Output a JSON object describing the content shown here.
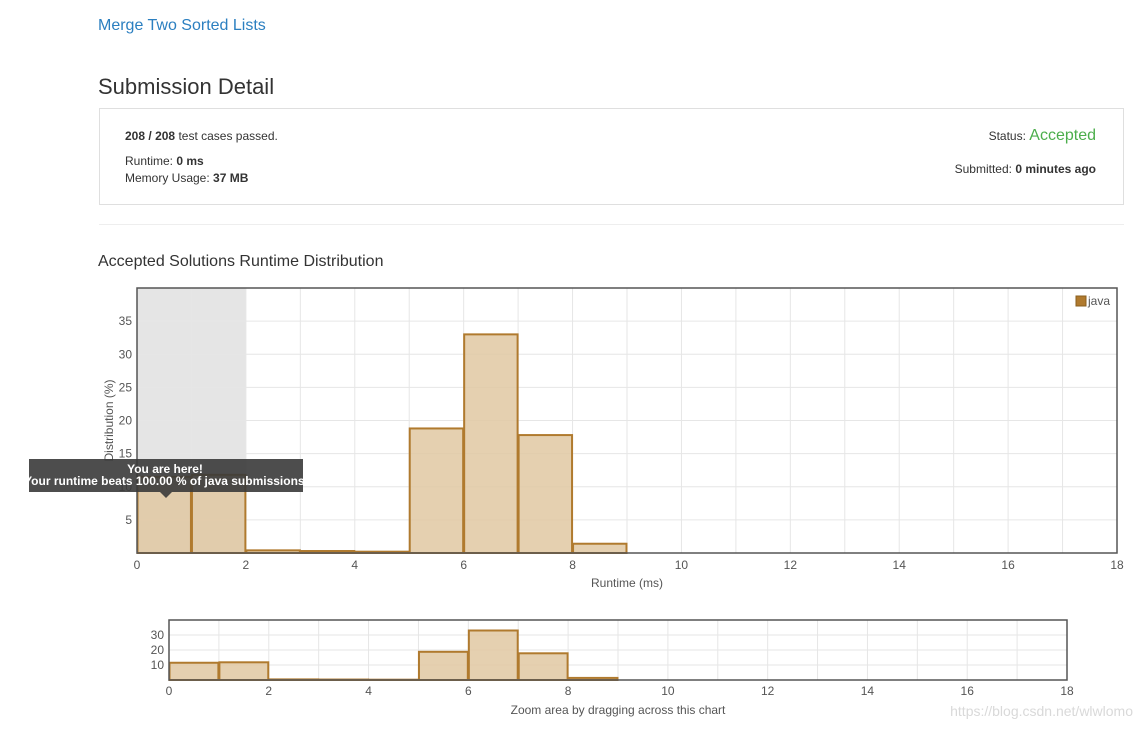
{
  "problem": {
    "title": "Merge Two Sorted Lists"
  },
  "page_title": "Submission Detail",
  "submission": {
    "passed": "208",
    "separator": "/",
    "total": "208",
    "passed_suffix": "test cases passed.",
    "runtime_label": "Runtime:",
    "runtime_value": "0 ms",
    "memory_label": "Memory Usage:",
    "memory_value": "37 MB",
    "status_label": "Status:",
    "status_value": "Accepted",
    "submitted_label": "Submitted:",
    "submitted_value": "0 minutes ago"
  },
  "section_title": "Accepted Solutions Runtime Distribution",
  "tooltip": {
    "line1": "You are here!",
    "line2": "Your runtime beats 100.00 % of java submissions."
  },
  "colors": {
    "bar_fill": "#e0c8a2",
    "bar_stroke": "#b07a2e",
    "highlight": "#e5e5e5",
    "status": "#4cae4c",
    "link": "#2b7fc0"
  },
  "chart_data": [
    {
      "type": "bar",
      "bins_start": [
        0,
        1,
        2,
        3,
        4,
        5,
        6,
        7,
        8,
        9,
        10,
        11,
        12,
        13,
        14,
        15,
        16,
        17
      ],
      "bin_width": 1,
      "series": [
        {
          "name": "java",
          "values": [
            11.5,
            11.8,
            0.4,
            0.3,
            0.2,
            18.8,
            33.0,
            17.8,
            1.4,
            0,
            0,
            0,
            0,
            0,
            0,
            0,
            0,
            0
          ]
        }
      ],
      "highlight_range": [
        0,
        2
      ],
      "xlim": [
        0,
        18
      ],
      "ylim": [
        0,
        40
      ],
      "x_ticks": [
        "0",
        "2",
        "4",
        "6",
        "8",
        "10",
        "12",
        "14",
        "16",
        "18"
      ],
      "y_ticks": [
        "5",
        "10",
        "15",
        "20",
        "25",
        "30",
        "35"
      ],
      "xlabel": "Runtime (ms)",
      "ylabel": "Distribution (%)",
      "legend": "java",
      "legend_position": "top-right",
      "grid": true
    },
    {
      "type": "bar",
      "xlim": [
        0,
        18
      ],
      "ylim": [
        0,
        40
      ],
      "x_ticks": [
        "0",
        "2",
        "4",
        "6",
        "8",
        "10",
        "12",
        "14",
        "16",
        "18"
      ],
      "y_ticks": [
        "10",
        "20",
        "30"
      ],
      "xlabel": "Zoom area by dragging across this chart",
      "grid": true
    }
  ],
  "watermark": "https://blog.csdn.net/wlwlomo"
}
